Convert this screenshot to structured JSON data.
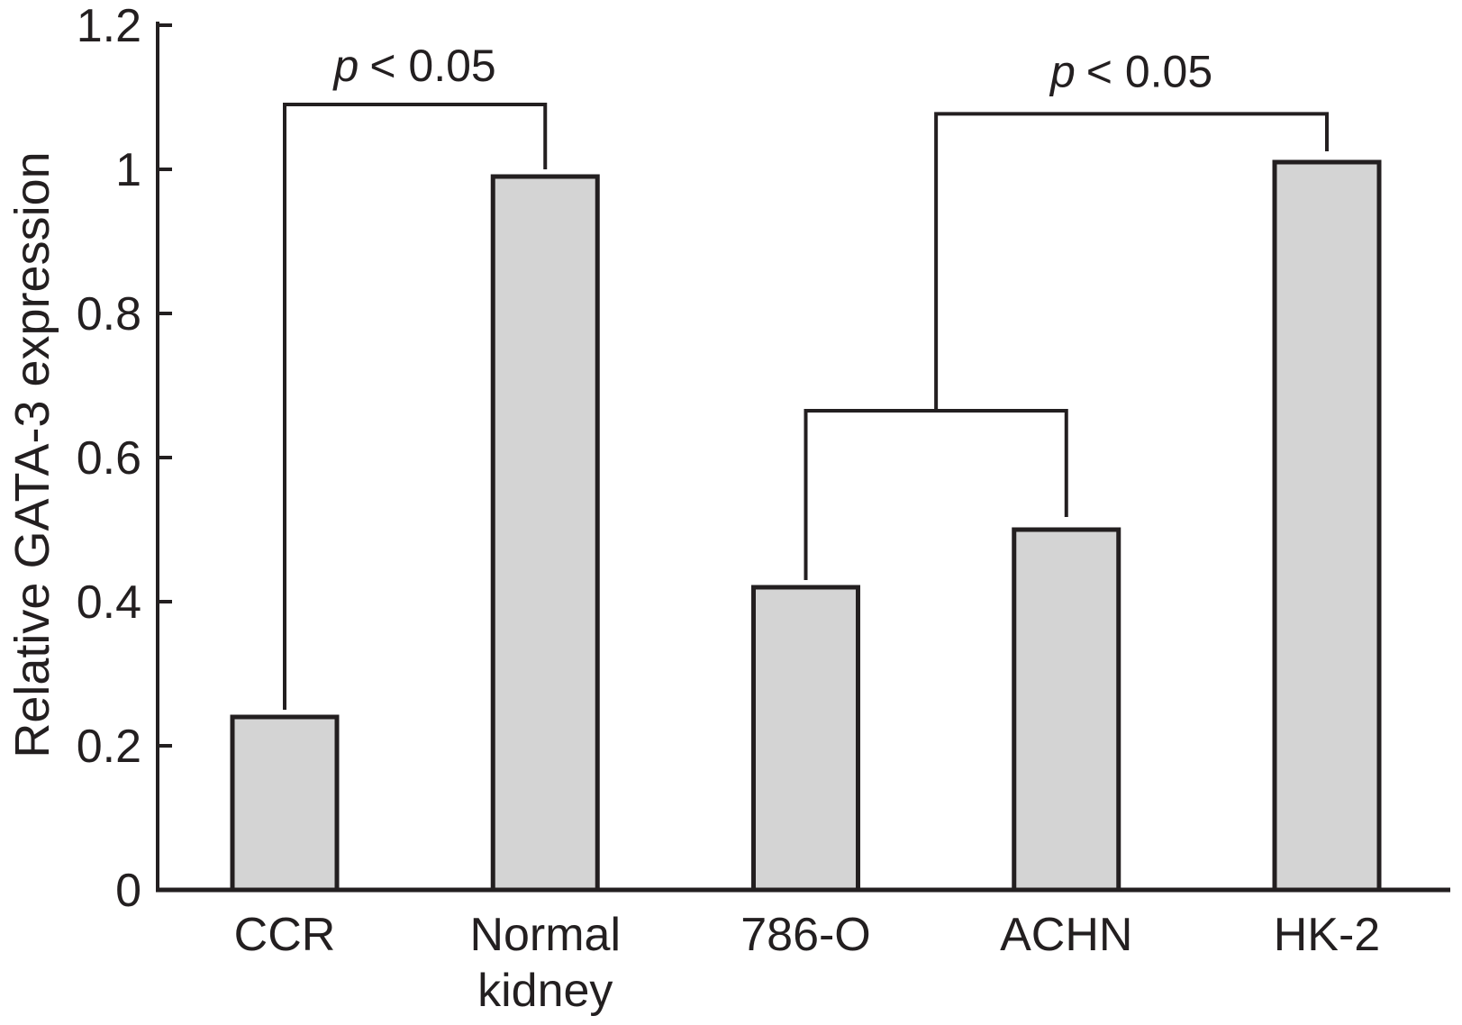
{
  "chart_data": {
    "type": "bar",
    "title": "",
    "xlabel": "",
    "ylabel": "Relative GATA-3 expression",
    "categories": [
      "CCR",
      "Normal\nkidney",
      "786-O",
      "ACHN",
      "HK-2"
    ],
    "values": [
      0.24,
      0.99,
      0.42,
      0.5,
      1.01
    ],
    "ylim": [
      0,
      1.2
    ],
    "yticks": [
      0,
      0.2,
      0.4,
      0.6,
      0.8,
      1,
      1.2
    ],
    "grid": false,
    "legend": null,
    "bar_fill": "#d4d4d4",
    "bar_stroke": "#231f20",
    "axis_color": "#231f20",
    "annotations": [
      {
        "type": "bracket",
        "label": "p < 0.05",
        "bar_indices": [
          0,
          1
        ],
        "height": 1.09
      },
      {
        "type": "nested_bracket",
        "label": "p < 0.05",
        "inner_bar_indices": [
          2,
          3
        ],
        "inner_height": 0.665,
        "outer_bar_index": 4,
        "outer_height": 1.077
      }
    ]
  }
}
